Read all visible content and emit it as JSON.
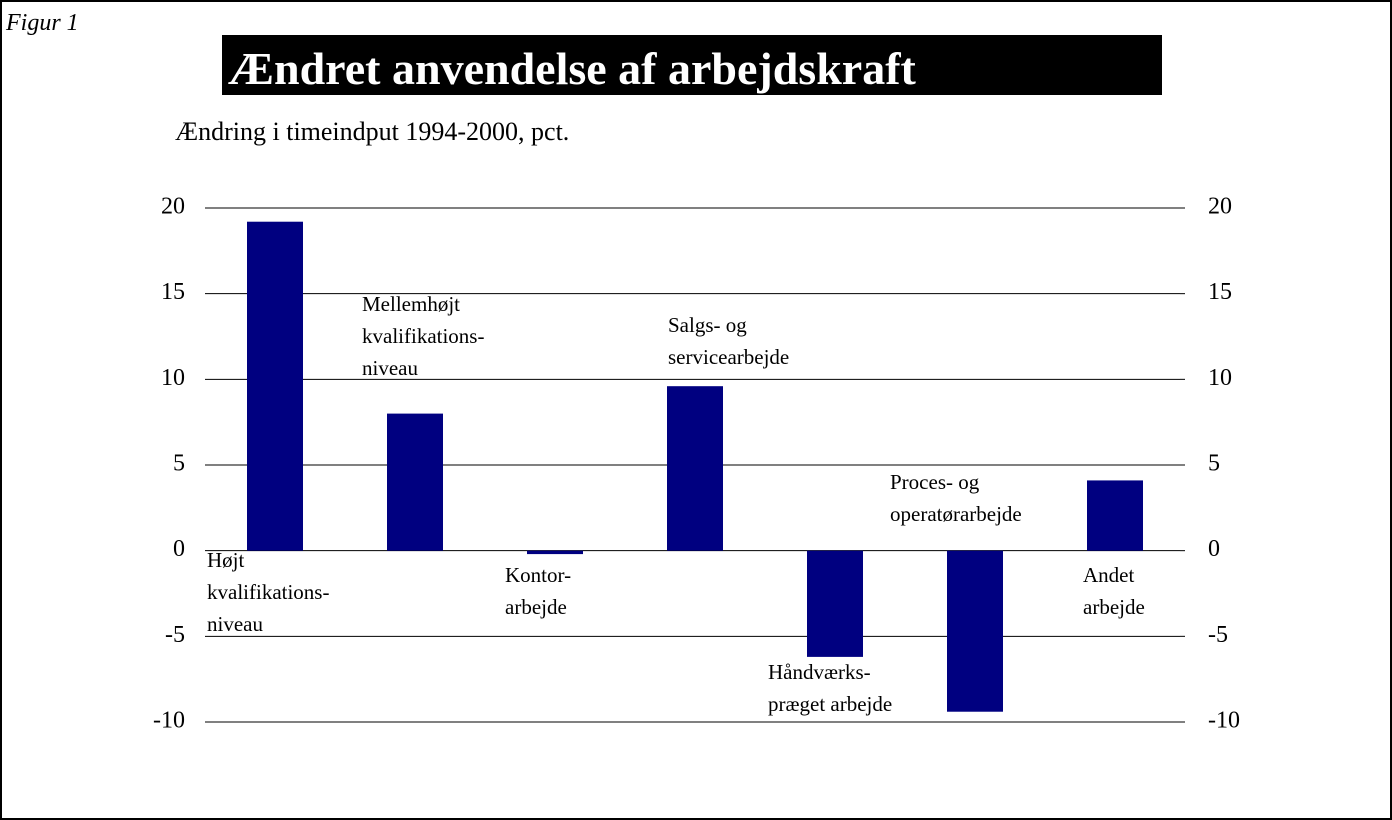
{
  "chart_data": {
    "type": "bar",
    "figure_label": "Figur 1",
    "title": "Ændret anvendelse af arbejdskraft",
    "subtitle": "Ændring i timeindput 1994-2000, pct.",
    "categories": [
      [
        "Højt",
        "kvalifikations-",
        "niveau"
      ],
      [
        "Mellemhøjt",
        "kvalifikations-",
        "niveau"
      ],
      [
        "Kontor-",
        "arbejde"
      ],
      [
        "Salgs- og",
        "servicearbejde"
      ],
      [
        "Håndværks-",
        "præget arbejde"
      ],
      [
        "Proces- og",
        "operatørarbejde"
      ],
      [
        "Andet",
        "arbejde"
      ]
    ],
    "values": [
      19.2,
      8.0,
      -0.2,
      9.6,
      -6.2,
      -9.4,
      4.1
    ],
    "color": "#000080",
    "ylim": [
      -10,
      20
    ],
    "yticks": [
      20,
      15,
      10,
      5,
      0,
      -5,
      -10
    ],
    "y2lim": [
      -10,
      20
    ],
    "y2ticks": [
      20,
      15,
      10,
      5,
      0,
      -5,
      -10
    ],
    "grid": true
  }
}
